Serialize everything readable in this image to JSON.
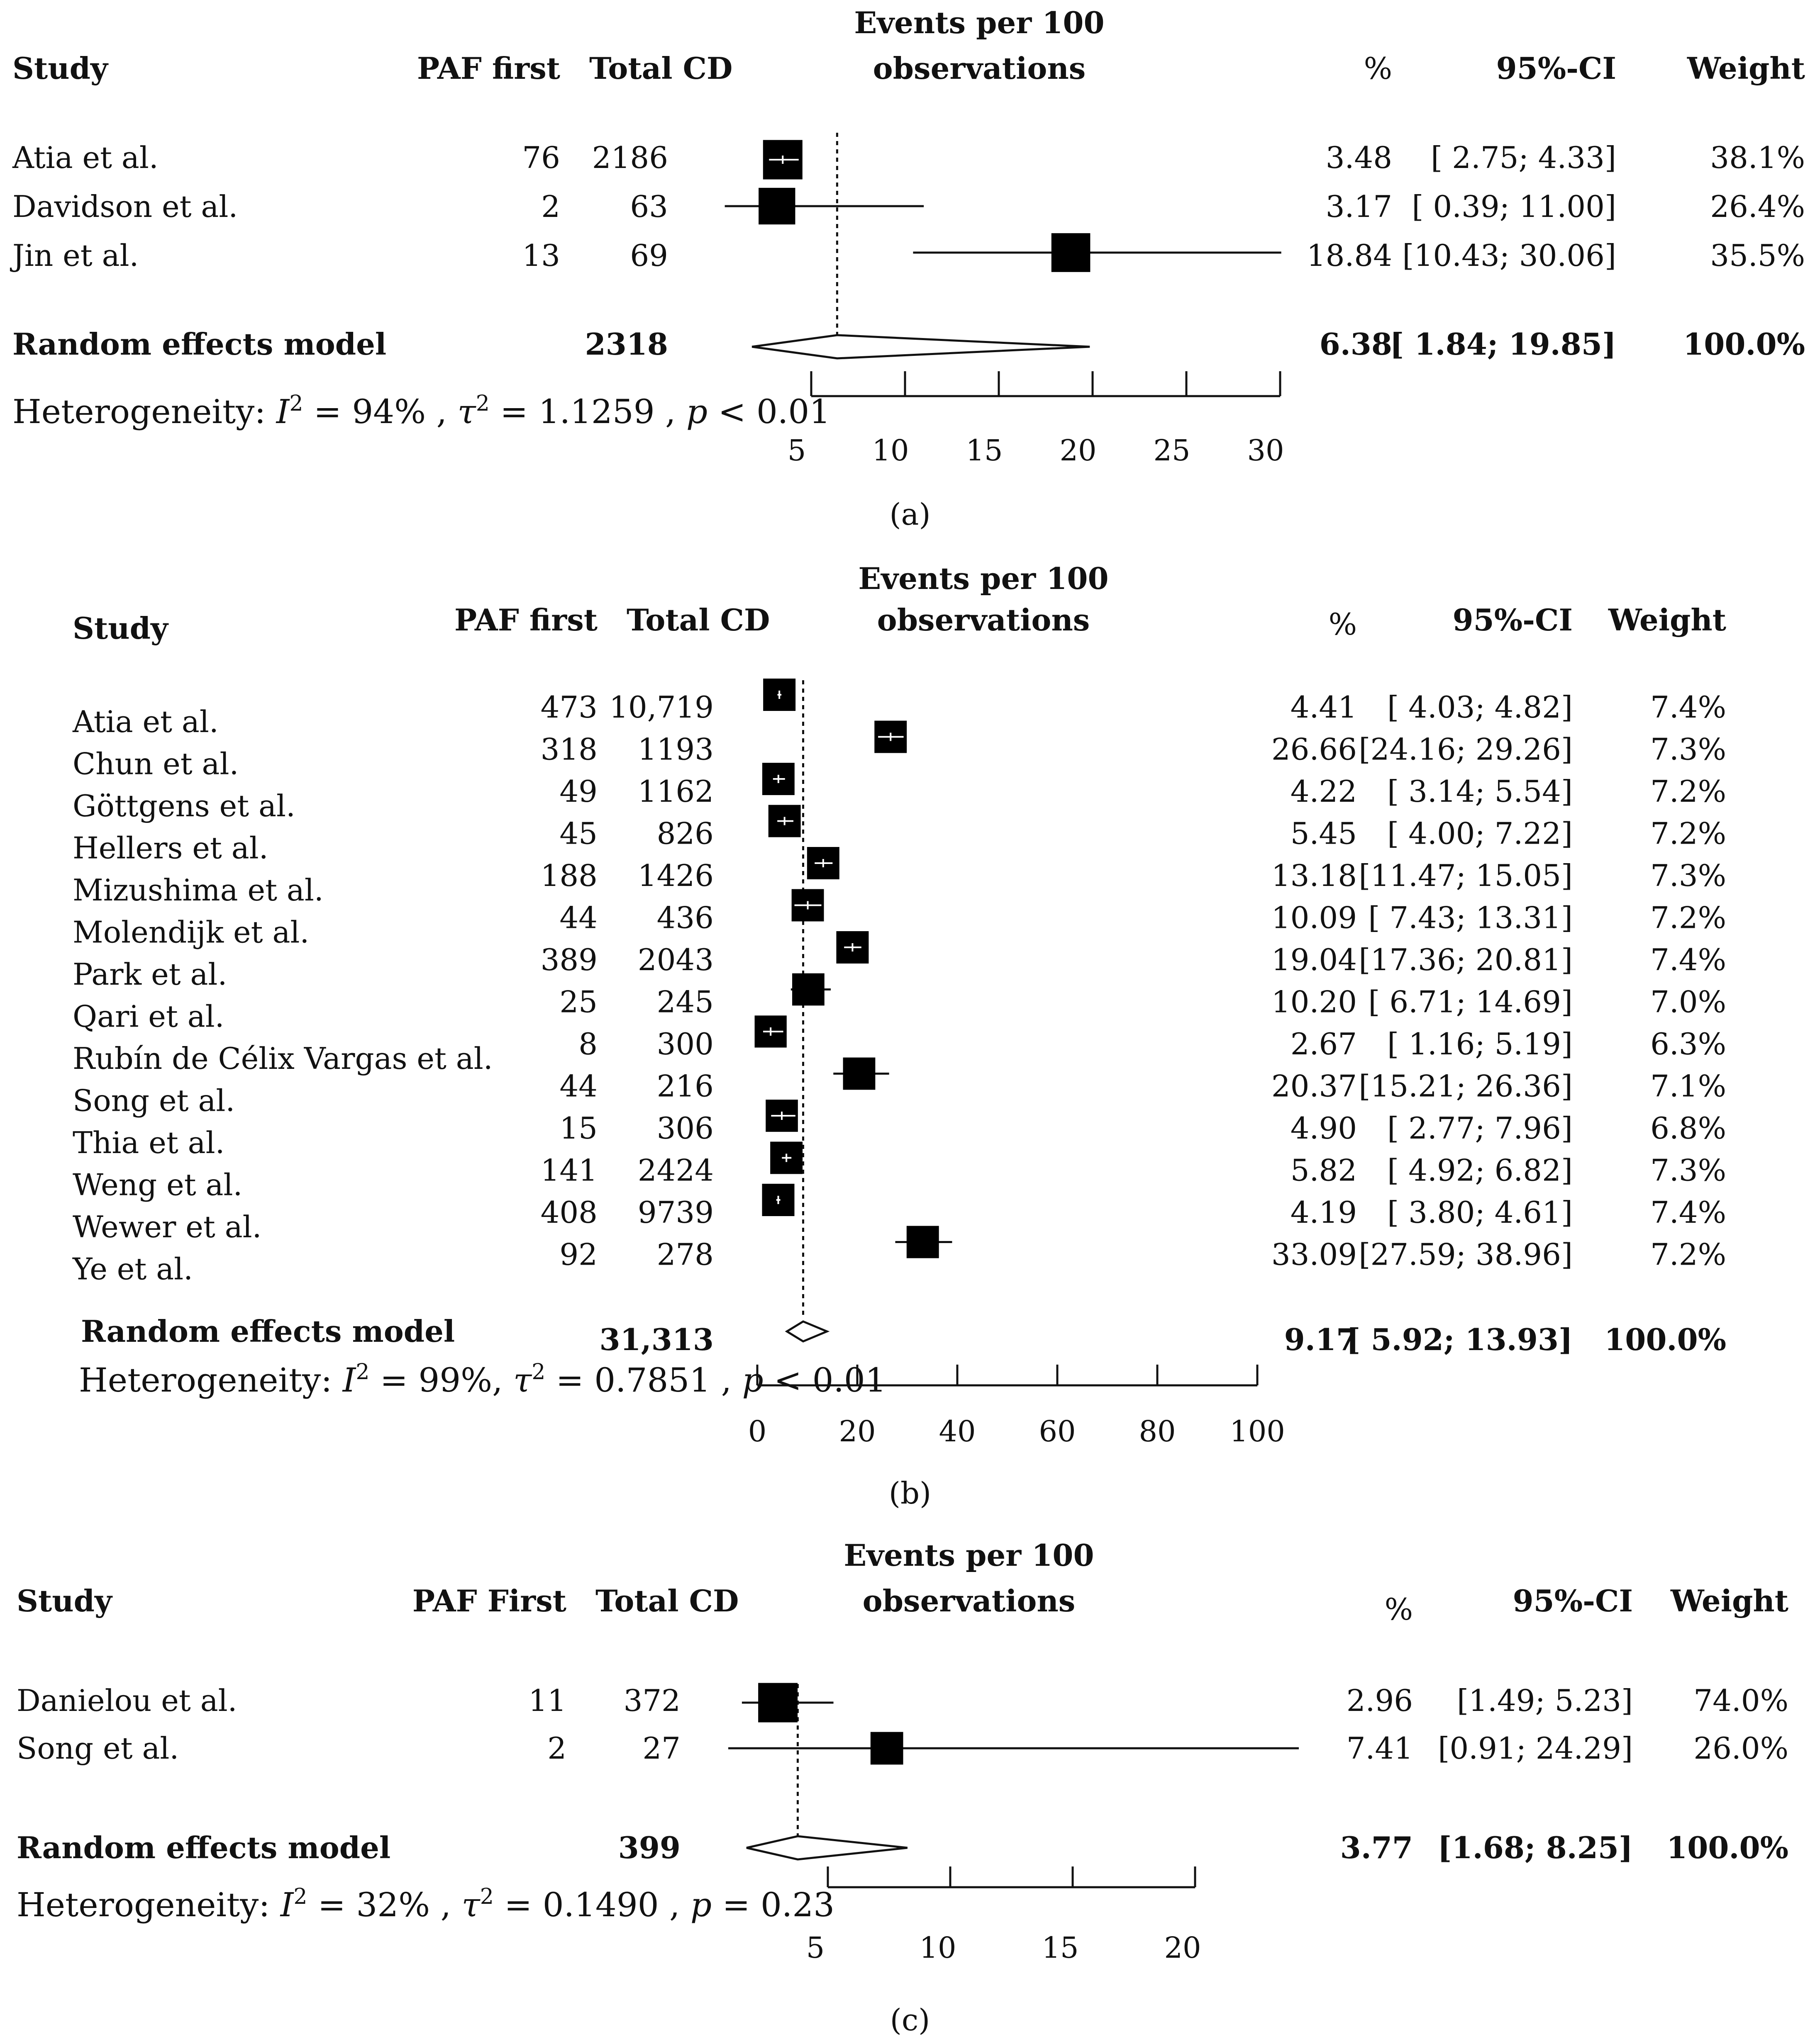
{
  "chart_data": [
    {
      "type": "forest",
      "panel_label": "(a)",
      "header": {
        "study": "Study",
        "paf": "PAF first",
        "total": "Total CD",
        "plot_title_1": "Events per 100",
        "plot_title_2": "observations",
        "pct": "%",
        "ci": "95%-CI",
        "weight": "Weight"
      },
      "xlim": [
        5,
        30
      ],
      "ticks": [
        5,
        10,
        15,
        20,
        25,
        30
      ],
      "ref_line": 6.38,
      "studies": [
        {
          "name": "Atia et al.",
          "paf": "76",
          "total": "2186",
          "est": 3.48,
          "lo": 2.75,
          "hi": 4.33,
          "est_text": "3.48",
          "ci_text": "[ 2.75;  4.33]",
          "weight_text": "38.1%",
          "w": 38.1
        },
        {
          "name": "Davidson et al.",
          "paf": "2",
          "total": "63",
          "est": 3.17,
          "lo": 0.39,
          "hi": 11.0,
          "est_text": "3.17",
          "ci_text": "[ 0.39; 11.00]",
          "weight_text": "26.4%",
          "w": 26.4
        },
        {
          "name": "Jin et al.",
          "paf": "13",
          "total": "69",
          "est": 18.84,
          "lo": 10.43,
          "hi": 30.06,
          "est_text": "18.84",
          "ci_text": "[10.43; 30.06]",
          "weight_text": "35.5%",
          "w": 35.5
        }
      ],
      "summary": {
        "label": "Random effects model",
        "total": "2318",
        "est": 6.38,
        "lo": 1.84,
        "hi": 19.85,
        "est_text": "6.38",
        "ci_text": "[ 1.84; 19.85]",
        "weight_text": "100.0%"
      },
      "heterogeneity": {
        "prefix": "Heterogeneity: ",
        "i2": "= 94%",
        "tau2": "= 1.1259",
        "p": "< 0.01"
      }
    },
    {
      "type": "forest",
      "panel_label": "(b)",
      "header": {
        "study": "Study",
        "paf": "PAF first",
        "total": "Total CD",
        "plot_title_1": "Events per 100",
        "plot_title_2": "observations",
        "pct": "%",
        "ci": "95%-CI",
        "weight": "Weight"
      },
      "xlim": [
        0,
        100
      ],
      "ticks": [
        0,
        20,
        40,
        60,
        80,
        100
      ],
      "ref_line": 9.17,
      "studies": [
        {
          "name": "Atia et al.",
          "paf": "473",
          "total": "10,719",
          "est": 4.41,
          "lo": 4.03,
          "hi": 4.82,
          "est_text": "4.41",
          "ci_text": "[ 4.03;  4.82]",
          "weight_text": "7.4%",
          "w": 7.4
        },
        {
          "name": "Chun et al.",
          "paf": "318",
          "total": "1193",
          "est": 26.66,
          "lo": 24.16,
          "hi": 29.26,
          "est_text": "26.66",
          "ci_text": "[24.16; 29.26]",
          "weight_text": "7.3%",
          "w": 7.3
        },
        {
          "name": "Göttgens et al.",
          "paf": "49",
          "total": "1162",
          "est": 4.22,
          "lo": 3.14,
          "hi": 5.54,
          "est_text": "4.22",
          "ci_text": "[ 3.14;  5.54]",
          "weight_text": "7.2%",
          "w": 7.2
        },
        {
          "name": "Hellers et al.",
          "paf": "45",
          "total": "826",
          "est": 5.45,
          "lo": 4.0,
          "hi": 7.22,
          "est_text": "5.45",
          "ci_text": "[ 4.00;  7.22]",
          "weight_text": "7.2%",
          "w": 7.2
        },
        {
          "name": "Mizushima et al.",
          "paf": "188",
          "total": "1426",
          "est": 13.18,
          "lo": 11.47,
          "hi": 15.05,
          "est_text": "13.18",
          "ci_text": "[11.47; 15.05]",
          "weight_text": "7.3%",
          "w": 7.3
        },
        {
          "name": "Molendijk et al.",
          "paf": "44",
          "total": "436",
          "est": 10.09,
          "lo": 7.43,
          "hi": 13.31,
          "est_text": "10.09",
          "ci_text": "[ 7.43; 13.31]",
          "weight_text": "7.2%",
          "w": 7.2
        },
        {
          "name": "Park et al.",
          "paf": "389",
          "total": "2043",
          "est": 19.04,
          "lo": 17.36,
          "hi": 20.81,
          "est_text": "19.04",
          "ci_text": "[17.36; 20.81]",
          "weight_text": "7.4%",
          "w": 7.4
        },
        {
          "name": "Qari et al.",
          "paf": "25",
          "total": "245",
          "est": 10.2,
          "lo": 6.71,
          "hi": 14.69,
          "est_text": "10.20",
          "ci_text": "[ 6.71; 14.69]",
          "weight_text": "7.0%",
          "w": 7.0
        },
        {
          "name": "Rubín de Célix Vargas et al.",
          "paf": "8",
          "total": "300",
          "est": 2.67,
          "lo": 1.16,
          "hi": 5.19,
          "est_text": "2.67",
          "ci_text": "[ 1.16;  5.19]",
          "weight_text": "6.3%",
          "w": 6.3
        },
        {
          "name": "Song et al.",
          "paf": "44",
          "total": "216",
          "est": 20.37,
          "lo": 15.21,
          "hi": 26.36,
          "est_text": "20.37",
          "ci_text": "[15.21; 26.36]",
          "weight_text": "7.1%",
          "w": 7.1
        },
        {
          "name": "Thia et al.",
          "paf": "15",
          "total": "306",
          "est": 4.9,
          "lo": 2.77,
          "hi": 7.96,
          "est_text": "4.90",
          "ci_text": "[ 2.77;  7.96]",
          "weight_text": "6.8%",
          "w": 6.8
        },
        {
          "name": "Weng et al.",
          "paf": "141",
          "total": "2424",
          "est": 5.82,
          "lo": 4.92,
          "hi": 6.82,
          "est_text": "5.82",
          "ci_text": "[ 4.92;  6.82]",
          "weight_text": "7.3%",
          "w": 7.3
        },
        {
          "name": "Wewer et al.",
          "paf": "408",
          "total": "9739",
          "est": 4.19,
          "lo": 3.8,
          "hi": 4.61,
          "est_text": "4.19",
          "ci_text": "[ 3.80;  4.61]",
          "weight_text": "7.4%",
          "w": 7.4
        },
        {
          "name": "Ye et al.",
          "paf": "92",
          "total": "278",
          "est": 33.09,
          "lo": 27.59,
          "hi": 38.96,
          "est_text": "33.09",
          "ci_text": "[27.59; 38.96]",
          "weight_text": "7.2%",
          "w": 7.2
        }
      ],
      "summary": {
        "label": "Random effects model",
        "total": "31,313",
        "est": 9.17,
        "lo": 5.92,
        "hi": 13.93,
        "est_text": "9.17",
        "ci_text": "[ 5.92; 13.93]",
        "weight_text": "100.0%"
      },
      "heterogeneity": {
        "prefix": "Heterogeneity: ",
        "i2": "= 99%,",
        "tau2": "= 0.7851",
        "p": "< 0.01"
      }
    },
    {
      "type": "forest",
      "panel_label": "(c)",
      "header": {
        "study": "Study",
        "paf": "PAF First",
        "total": "Total CD",
        "plot_title_1": "Events per 100",
        "plot_title_2": "observations",
        "pct": "%",
        "ci": "95%-CI",
        "weight": "Weight"
      },
      "xlim": [
        5,
        20
      ],
      "ticks": [
        5,
        10,
        15,
        20
      ],
      "ref_line": 3.77,
      "studies": [
        {
          "name": "Danielou et al.",
          "paf": "11",
          "total": "372",
          "est": 2.96,
          "lo": 1.49,
          "hi": 5.23,
          "est_text": "2.96",
          "ci_text": "[1.49;  5.23]",
          "weight_text": "74.0%",
          "w": 74.0
        },
        {
          "name": "Song et al.",
          "paf": "2",
          "total": "27",
          "est": 7.41,
          "lo": 0.91,
          "hi": 24.29,
          "est_text": "7.41",
          "ci_text": "[0.91; 24.29]",
          "weight_text": "26.0%",
          "w": 26.0
        }
      ],
      "summary": {
        "label": "Random effects model",
        "total": "399",
        "est": 3.77,
        "lo": 1.68,
        "hi": 8.25,
        "est_text": "3.77",
        "ci_text": "[1.68;  8.25]",
        "weight_text": "100.0%"
      },
      "heterogeneity": {
        "prefix": "Heterogeneity: ",
        "i2": "= 32%",
        "tau2": "= 0.1490",
        "p": "= 0.23"
      }
    }
  ]
}
